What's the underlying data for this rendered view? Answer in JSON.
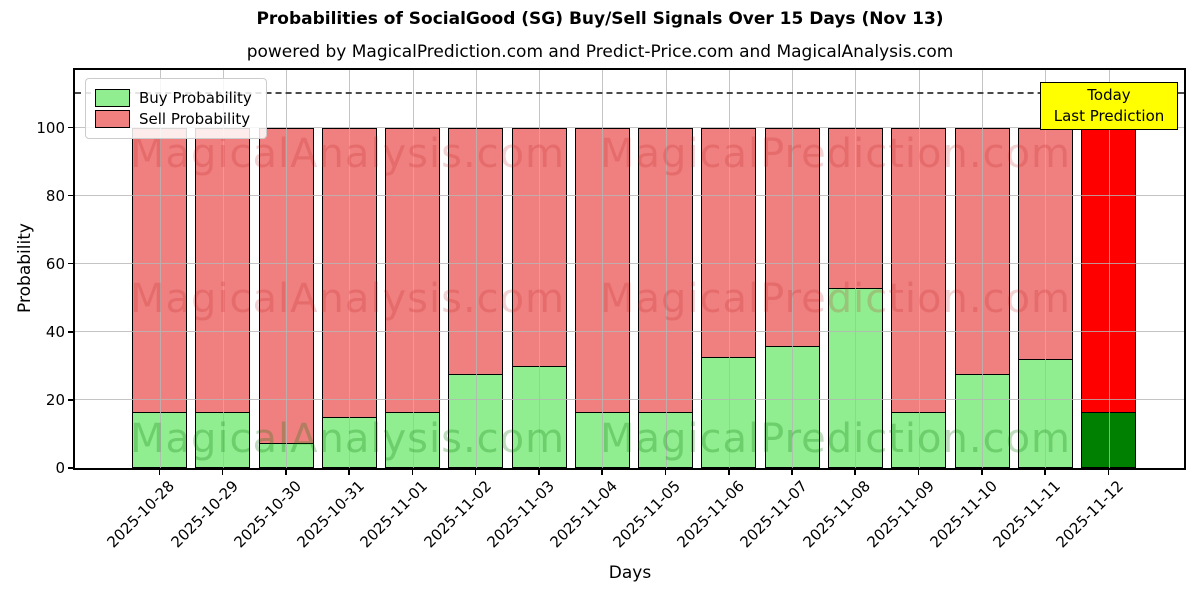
{
  "header": {
    "title": "Probabilities of SocialGood (SG) Buy/Sell Signals Over 15 Days (Nov 13)",
    "subtitle": "powered by MagicalPrediction.com and Predict-Price.com and MagicalAnalysis.com"
  },
  "chart_data": {
    "type": "bar",
    "stacked": true,
    "title": "Probabilities of SocialGood (SG) Buy/Sell Signals Over 15 Days (Nov 13)",
    "subtitle": "powered by MagicalPrediction.com and Predict-Price.com and MagicalAnalysis.com",
    "xlabel": "Days",
    "ylabel": "Probability",
    "categories": [
      "2025-10-28",
      "2025-10-29",
      "2025-10-30",
      "2025-10-31",
      "2025-11-01",
      "2025-11-02",
      "2025-11-03",
      "2025-11-04",
      "2025-11-05",
      "2025-11-06",
      "2025-11-07",
      "2025-11-08",
      "2025-11-09",
      "2025-11-10",
      "2025-11-11",
      "2025-11-12"
    ],
    "series": [
      {
        "name": "Buy Probability",
        "color": "#90EE90",
        "values": [
          16.5,
          16.5,
          7.5,
          15,
          16.5,
          27.5,
          30,
          16.5,
          16.5,
          32.5,
          36,
          53,
          16.5,
          27.5,
          32,
          16.5
        ]
      },
      {
        "name": "Sell Probability",
        "color": "#F08080",
        "values": [
          83.5,
          83.5,
          92.5,
          85,
          83.5,
          72.5,
          70,
          83.5,
          83.5,
          67.5,
          64,
          47,
          83.5,
          72.5,
          68,
          83.5
        ]
      }
    ],
    "today_annotation": {
      "line1": "Today",
      "line2": "Last Prediction",
      "category": "2025-11-12",
      "bg_color": "#FFFF00",
      "buy_color": "#008000",
      "sell_color": "#FF0000"
    },
    "ylim": [
      0,
      117
    ],
    "yticks": [
      0,
      20,
      40,
      60,
      80,
      100
    ],
    "dashed_line_y": 110,
    "grid": true,
    "legend_position": "upper left",
    "bar_edge_color": "#000000",
    "watermarks": [
      "MagicalAnalysis.com",
      "MagicalPrediction.com"
    ]
  }
}
